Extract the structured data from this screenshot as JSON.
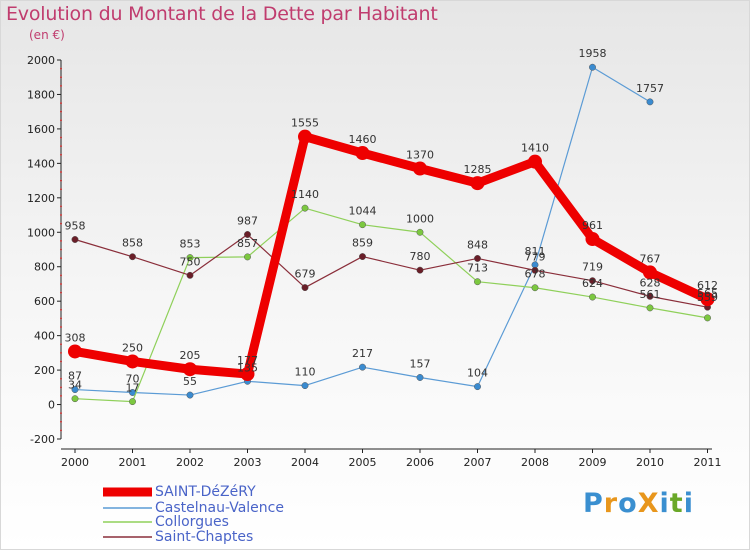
{
  "title": "Evolution du Montant de la Dette par Habitant",
  "unit_label": "(en €)",
  "brand": {
    "text": "ProXiti",
    "letters": [
      "P",
      "r",
      "o",
      "X",
      "i",
      "t",
      "i"
    ],
    "letter_colors": [
      "#3a8fd0",
      "#e8961c",
      "#3a8fd0",
      "#e8961c",
      "#3a8fd0",
      "#6aa828",
      "#3a8fd0"
    ]
  },
  "chart_data": {
    "type": "line",
    "title": "Evolution du Montant de la Dette par Habitant",
    "ylabel": "(en €)",
    "xlabel": "",
    "x": [
      "2000",
      "2001",
      "2002",
      "2003",
      "2004",
      "2005",
      "2006",
      "2007",
      "2008",
      "2009",
      "2010",
      "2011"
    ],
    "ylim": [
      -200,
      2000
    ],
    "yticks": [
      -200,
      0,
      200,
      400,
      600,
      800,
      1000,
      1200,
      1400,
      1600,
      1800,
      2000
    ],
    "grid": false,
    "legend_position": "bottom-left",
    "series": [
      {
        "name": "Castelnau-Valence",
        "color": "#5b9bd5",
        "dot": "#3a8bd0",
        "values": [
          87,
          70,
          55,
          135,
          110,
          217,
          157,
          104,
          811,
          1958,
          1757,
          null
        ],
        "labels": [
          "87",
          "70",
          "55",
          "135",
          "110",
          "217",
          "157",
          "104",
          "811",
          "1958",
          "1757",
          null
        ]
      },
      {
        "name": "Collorgues",
        "color": "#8fd05a",
        "dot": "#7cc840",
        "values": [
          34,
          17,
          853,
          857,
          1140,
          1044,
          1000,
          713,
          678,
          624,
          561,
          503
        ],
        "labels": [
          "34",
          "17",
          "853",
          "857",
          "1140",
          "1044",
          "1000",
          "713",
          "678",
          "624",
          "561",
          null
        ]
      },
      {
        "name": "Saint-Chaptes",
        "color": "#8a2e3a",
        "dot": "#6a1e28",
        "values": [
          958,
          858,
          750,
          987,
          679,
          859,
          780,
          848,
          779,
          719,
          628,
          565
        ],
        "labels": [
          "958",
          "858",
          "750",
          "987",
          "679",
          "859",
          "780",
          "848",
          "779",
          "719",
          "628",
          "565"
        ]
      },
      {
        "name": "SAINT-DéZéRY",
        "color": "#ee0000",
        "dot": "#ee0000",
        "values": [
          308,
          250,
          205,
          177,
          1555,
          1460,
          1370,
          1285,
          1410,
          961,
          767,
          612
        ],
        "labels": [
          "308",
          "250",
          "205",
          "177",
          "1555",
          "1460",
          "1370",
          "1285",
          "1410",
          "961",
          "767",
          "612"
        ]
      }
    ],
    "extra_labels": [
      "559"
    ],
    "legend": [
      "SAINT-DéZéRY",
      "Castelnau-Valence",
      "Collorgues",
      "Saint-Chaptes"
    ]
  }
}
